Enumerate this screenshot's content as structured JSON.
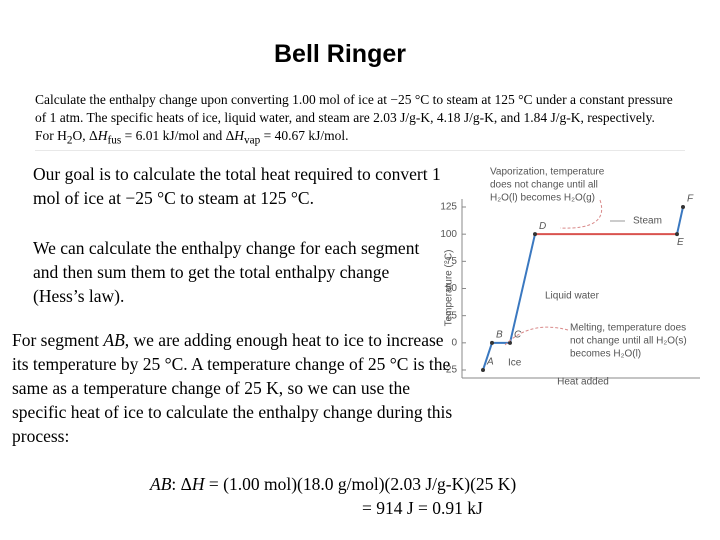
{
  "title": "Bell Ringer",
  "intro": [
    "Calculate the enthalpy change upon converting 1.00 mol of ice at −25 °C to steam at 125 °C under a constant pressure of 1 atm. The specific heats of ice, liquid water, and steam are 2.03 J/g-K, 4.18 J/g-K, and 1.84 J/g-K, respectively. For H",
    "2",
    "O, Δ",
    "H",
    "fus",
    " = 6.01 kJ/mol and Δ",
    "H",
    "vap",
    " = 40.67 kJ/mol."
  ],
  "paragraphs": [
    "Our goal is to calculate the total heat required to convert 1 mol of ice at −25 °C to steam at 125 °C.",
    "We can calculate the enthalpy change for each segment and then sum them to get the total enthalpy change (Hess’s law)."
  ],
  "segment_text": [
    "For segment ",
    "AB",
    ", we are adding enough heat to ice to increase its temperature by 25 °C. A temperature change of 25 °C is the same as a temperature change of 25 K, so we can use the specific heat of ice to calculate the enthalpy change during this process:"
  ],
  "equation": [
    "AB",
    ": Δ",
    "H",
    " = (1.00 mol)(18.0 g/mol)(2.03 J/g-K)(25 K)"
  ],
  "result": "= 914 J = 0.91 kJ",
  "figure": {
    "y_label": "Temperature (°C)",
    "x_label": "Heat added",
    "ylim": [
      -25,
      125
    ],
    "yticks": [
      -25,
      0,
      25,
      50,
      75,
      100,
      125
    ],
    "points": [
      {
        "label": "A",
        "y": -25
      },
      {
        "label": "B",
        "y": 0
      },
      {
        "label": "C",
        "y": 0
      },
      {
        "label": "D",
        "y": 100
      },
      {
        "label": "E",
        "y": 100
      },
      {
        "label": "F",
        "y": 125
      }
    ],
    "labels": {
      "steam": "Steam",
      "liquid": "Liquid water",
      "ice": "Ice"
    },
    "vaporization": [
      "Vaporization, temperature",
      "does not change until all",
      "H₂O(l) becomes H₂O(g)"
    ],
    "melting": [
      "Melting, temperature does",
      "not change until all H₂O(s)",
      "becomes H₂O(l)"
    ]
  }
}
